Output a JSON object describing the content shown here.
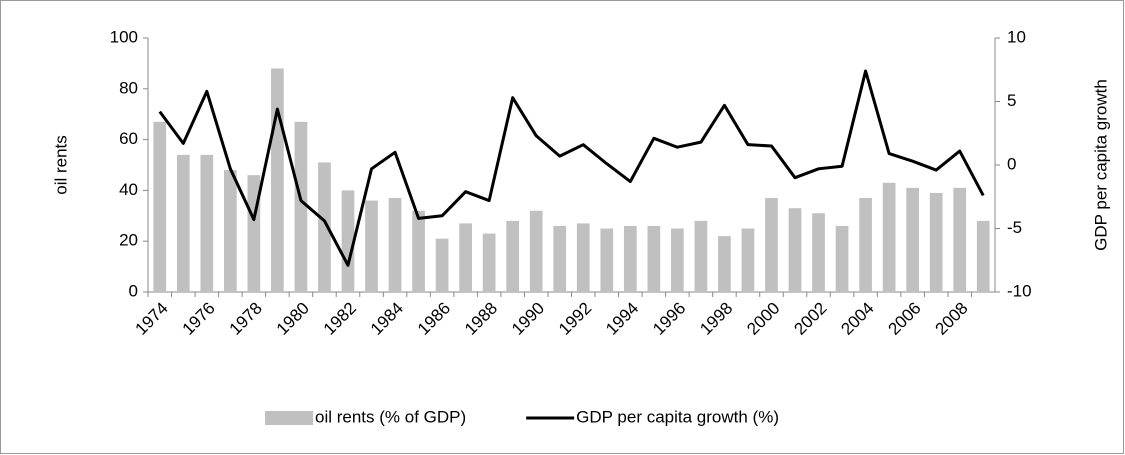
{
  "chart_data": {
    "type": "bar_line",
    "ylabel": "oil rents",
    "y2label": "GDP per capita growth",
    "categories": [
      "1974",
      null,
      "1976",
      null,
      "1978",
      null,
      "1980",
      null,
      "1982",
      null,
      "1984",
      null,
      "1986",
      null,
      "1988",
      null,
      "1990",
      null,
      "1992",
      null,
      "1994",
      null,
      "1996",
      null,
      "1998",
      null,
      "2000",
      null,
      "2002",
      null,
      "2004",
      null,
      "2006",
      null,
      "2008",
      null
    ],
    "series": [
      {
        "name": "oil rents (% of GDP)",
        "type": "bar",
        "color": "#c0c0c0",
        "values": [
          67,
          54,
          54,
          48,
          46,
          88,
          67,
          51,
          40,
          36,
          37,
          32,
          21,
          27,
          23,
          28,
          32,
          26,
          27,
          25,
          26,
          26,
          25,
          28,
          22,
          25,
          37,
          33,
          31,
          26,
          37,
          43,
          41,
          39,
          41,
          28
        ]
      },
      {
        "name": "GDP per capita growth (%)",
        "type": "line",
        "axis": "y2",
        "color": "#000000",
        "values": [
          4.2,
          1.7,
          5.8,
          -0.3,
          -4.3,
          4.4,
          -2.8,
          -4.4,
          -7.9,
          -0.3,
          1.0,
          -4.2,
          -4.0,
          -2.1,
          -2.8,
          5.3,
          2.3,
          0.7,
          1.6,
          0.1,
          -1.3,
          2.1,
          1.4,
          1.8,
          4.7,
          1.6,
          1.5,
          -1.0,
          -0.3,
          -0.1,
          7.4,
          0.9,
          0.3,
          -0.4,
          1.1,
          -2.4
        ]
      }
    ],
    "ylim": [
      0,
      100
    ],
    "yticks": [
      0,
      20,
      40,
      60,
      80,
      100
    ],
    "y2lim": [
      -10,
      10
    ],
    "y2ticks": [
      -10,
      -5,
      0,
      5,
      10
    ],
    "grid": false,
    "legend": "bottom"
  }
}
